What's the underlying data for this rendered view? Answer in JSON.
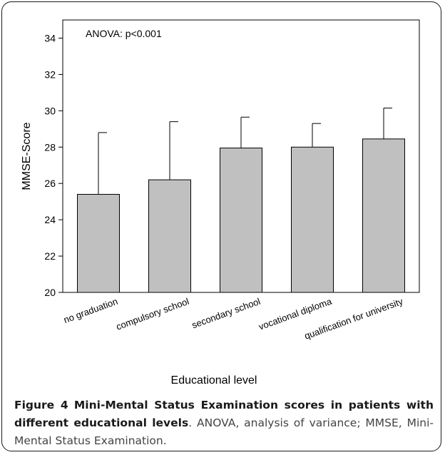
{
  "chart_data": {
    "type": "bar",
    "categories": [
      "no graduation",
      "compulsory school",
      "secondary school",
      "vocational diploma",
      "qualification for university"
    ],
    "values": [
      25.4,
      26.2,
      27.95,
      28.0,
      28.45
    ],
    "error_upper": [
      28.8,
      29.4,
      29.65,
      29.3,
      30.15
    ],
    "xlabel": "Educational level",
    "ylabel": "MMSE-Score",
    "ylim": [
      20,
      35
    ],
    "yticks": [
      20,
      22,
      24,
      26,
      28,
      30,
      32,
      34
    ],
    "annotation": "ANOVA: p<0.001",
    "grid": false,
    "bar_color": "#c0c0c0"
  },
  "caption": {
    "label": "Figure 4",
    "title": "Mini-Mental Status Examination scores in patients with different educational levels",
    "body": ". ANOVA, analysis of variance; MMSE, Mini-Mental Status Examination."
  }
}
